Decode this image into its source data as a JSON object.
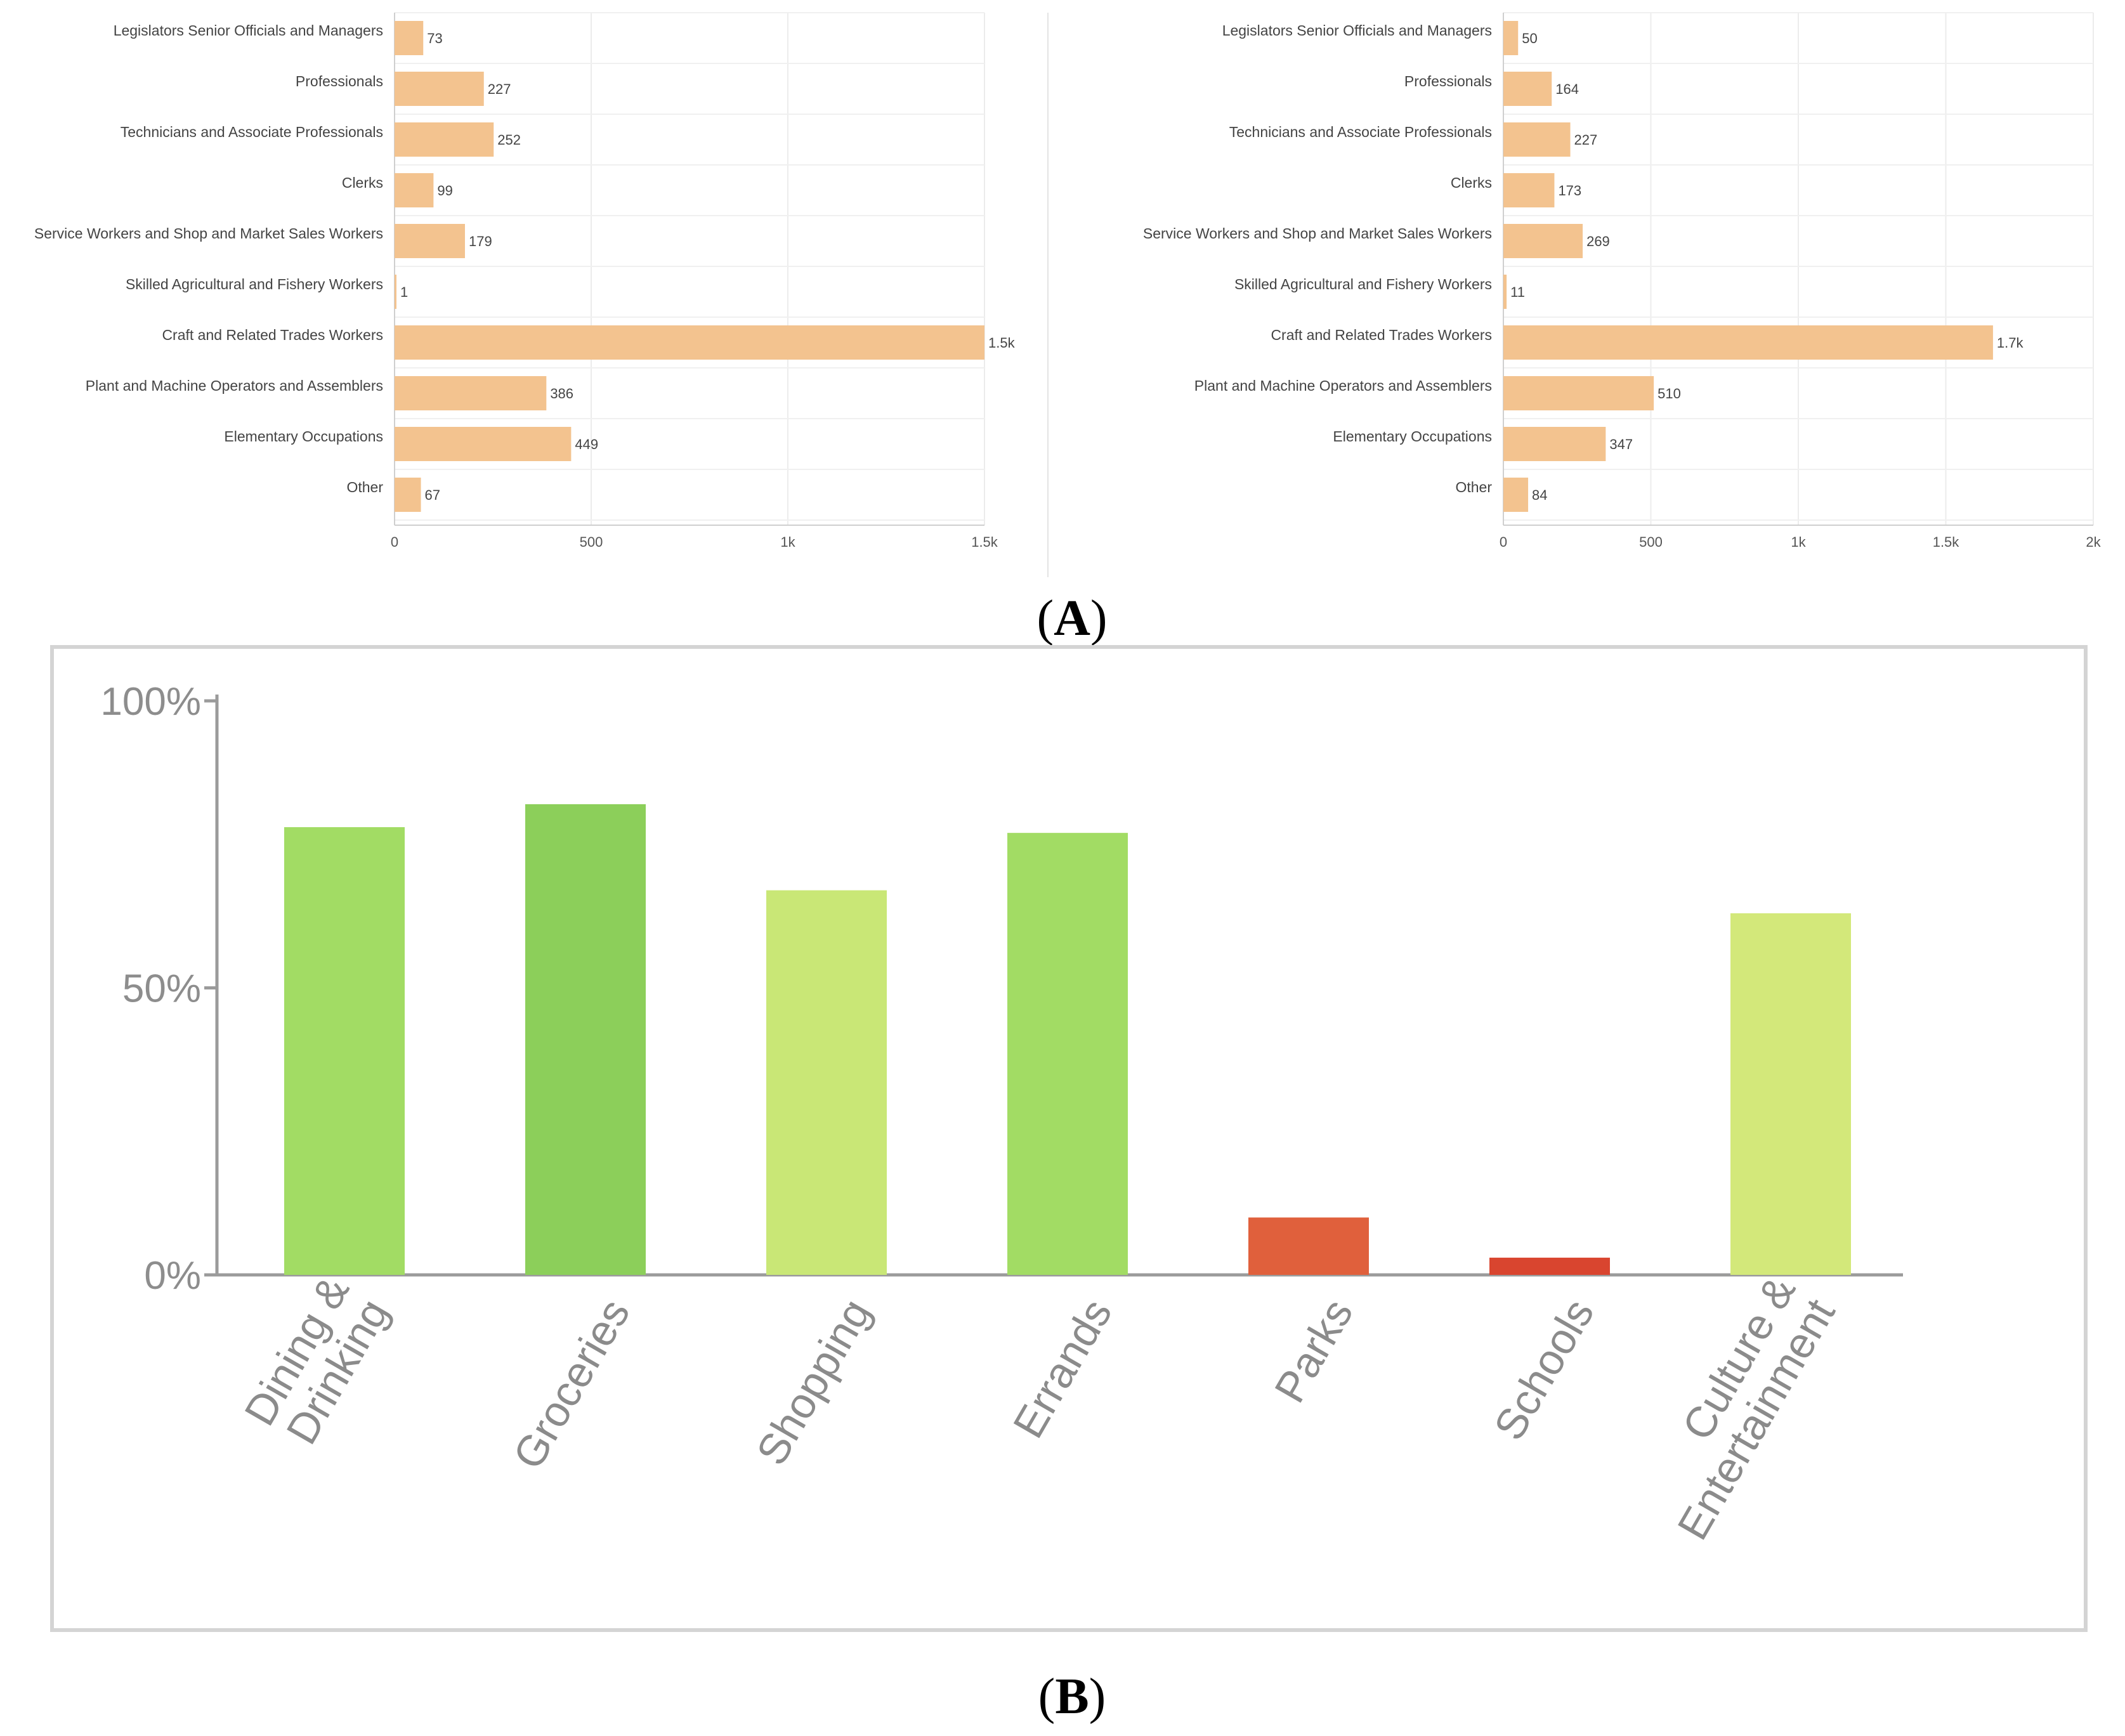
{
  "panel_labels": {
    "a": "A",
    "b": "B"
  },
  "chart_data": [
    {
      "type": "bar",
      "orientation": "horizontal",
      "panel": "A",
      "categories": [
        "Legislators Senior Officials and Managers",
        "Professionals",
        "Technicians and Associate Professionals",
        "Clerks",
        "Service Workers and Shop and Market Sales Workers",
        "Skilled Agricultural and Fishery Workers",
        "Craft and Related Trades Workers",
        "Plant and Machine Operators and Assemblers",
        "Elementary Occupations",
        "Other"
      ],
      "values": [
        73,
        227,
        252,
        99,
        179,
        1,
        1500,
        386,
        449,
        67
      ],
      "value_labels": [
        "73",
        "227",
        "252",
        "99",
        "179",
        "1",
        "1.5k",
        "386",
        "449",
        "67"
      ],
      "xlim": [
        0,
        1500
      ],
      "x_ticks": [
        0,
        500,
        1000,
        1500
      ],
      "x_tick_labels": [
        "0",
        "500",
        "1k",
        "1.5k"
      ],
      "grid": true,
      "bar_color": "#f3c38f"
    },
    {
      "type": "bar",
      "orientation": "horizontal",
      "panel": "A",
      "categories": [
        "Legislators Senior Officials and Managers",
        "Professionals",
        "Technicians and Associate Professionals",
        "Clerks",
        "Service Workers and Shop and Market Sales Workers",
        "Skilled Agricultural and Fishery Workers",
        "Craft and Related Trades Workers",
        "Plant and Machine Operators and Assemblers",
        "Elementary Occupations",
        "Other"
      ],
      "values": [
        50,
        164,
        227,
        173,
        269,
        11,
        1660,
        510,
        347,
        84
      ],
      "value_labels": [
        "50",
        "164",
        "227",
        "173",
        "269",
        "11",
        "1.7k",
        "510",
        "347",
        "84"
      ],
      "xlim": [
        0,
        2000
      ],
      "x_ticks": [
        0,
        500,
        1000,
        1500,
        2000
      ],
      "x_tick_labels": [
        "0",
        "500",
        "1k",
        "1.5k",
        "2k"
      ],
      "grid": true,
      "bar_color": "#f3c38f"
    },
    {
      "type": "bar",
      "orientation": "vertical",
      "panel": "B",
      "categories": [
        [
          "Dining &",
          "Drinking"
        ],
        [
          "Groceries"
        ],
        [
          "Shopping"
        ],
        [
          "Errands"
        ],
        [
          "Parks"
        ],
        [
          "Schools"
        ],
        [
          "Culture &",
          "Entertainment"
        ]
      ],
      "values": [
        78,
        82,
        67,
        77,
        10,
        3,
        63
      ],
      "colors": [
        "#a2dc64",
        "#8ccf5a",
        "#c9e776",
        "#a2dc64",
        "#e0603c",
        "#d9452f",
        "#d3e87a"
      ],
      "ylim": [
        0,
        100
      ],
      "y_ticks": [
        0,
        50,
        100
      ],
      "y_tick_labels": [
        "0%",
        "50%",
        "100%"
      ],
      "grid": false
    }
  ]
}
